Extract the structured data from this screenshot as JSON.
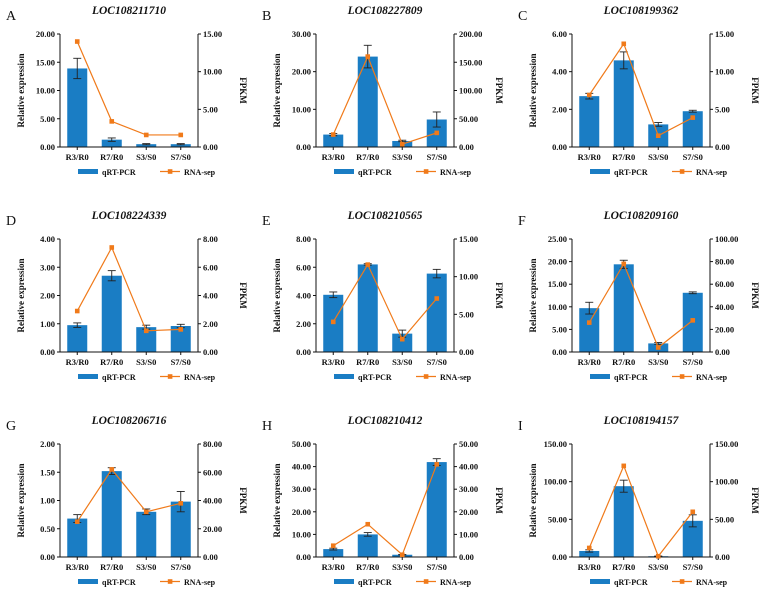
{
  "figure": {
    "colors": {
      "bar": "#1a7dc4",
      "line": "#f07a1a",
      "axis": "#111111"
    },
    "legend": {
      "bar_label": "qRT-PCR",
      "line_label": "RNA-sep"
    }
  },
  "chart_data": [
    {
      "panel": "A",
      "type": "bar",
      "title": "LOC108211710",
      "categories": [
        "R3/R0",
        "R7/R0",
        "S3/S0",
        "S7/S0"
      ],
      "ylabel": "Relative expression",
      "y2label": "FPKM",
      "ylim": [
        0,
        20
      ],
      "yticks": [
        "0.00",
        "5.00",
        "10.00",
        "15.00",
        "20.00"
      ],
      "y2lim": [
        0,
        15
      ],
      "y2ticks": [
        "0.00",
        "5.00",
        "10.00",
        "15.00"
      ],
      "series": [
        {
          "name": "qRT-PCR",
          "kind": "bar",
          "axis": "left",
          "values": [
            13.9,
            1.3,
            0.5,
            0.5
          ],
          "errors": [
            1.8,
            0.3,
            0.1,
            0.1
          ]
        },
        {
          "name": "RNA-sep",
          "kind": "line",
          "axis": "right",
          "values": [
            14.0,
            3.4,
            1.6,
            1.6
          ]
        }
      ]
    },
    {
      "panel": "B",
      "type": "bar",
      "title": "LOC108227809",
      "categories": [
        "R3/R0",
        "R7/R0",
        "S3/S0",
        "S7/S0"
      ],
      "ylabel": "Relative expression",
      "y2label": "FPKM",
      "ylim": [
        0,
        30
      ],
      "yticks": [
        "0.00",
        "10.00",
        "20.00",
        "30.00"
      ],
      "y2lim": [
        0,
        200
      ],
      "y2ticks": [
        "0.00",
        "50.00",
        "100.00",
        "150.00",
        "200.00"
      ],
      "series": [
        {
          "name": "qRT-PCR",
          "kind": "bar",
          "axis": "left",
          "values": [
            3.3,
            24.0,
            1.6,
            7.3
          ],
          "errors": [
            0.3,
            3.0,
            0.2,
            2.0
          ]
        },
        {
          "name": "RNA-sep",
          "kind": "line",
          "axis": "right",
          "values": [
            22,
            160,
            5,
            25
          ]
        }
      ]
    },
    {
      "panel": "C",
      "type": "bar",
      "title": "LOC108199362",
      "categories": [
        "R3/R0",
        "R7/R0",
        "S3/S0",
        "S7/S0"
      ],
      "ylabel": "Relative expression",
      "y2label": "FPKM",
      "ylim": [
        0,
        6
      ],
      "yticks": [
        "0.00",
        "2.00",
        "4.00",
        "6.00"
      ],
      "y2lim": [
        0,
        15
      ],
      "y2ticks": [
        "0.00",
        "5.00",
        "10.00",
        "15.00"
      ],
      "series": [
        {
          "name": "qRT-PCR",
          "kind": "bar",
          "axis": "left",
          "values": [
            2.7,
            4.6,
            1.2,
            1.9
          ],
          "errors": [
            0.15,
            0.45,
            0.1,
            0.05
          ]
        },
        {
          "name": "RNA-sep",
          "kind": "line",
          "axis": "right",
          "values": [
            6.9,
            13.7,
            1.5,
            3.9
          ]
        }
      ]
    },
    {
      "panel": "D",
      "type": "bar",
      "title": "LOC108224339",
      "categories": [
        "R3/R0",
        "R7/R0",
        "S3/S0",
        "S7/S0"
      ],
      "ylabel": "Relative expression",
      "y2label": "FPKM",
      "ylim": [
        0,
        4
      ],
      "yticks": [
        "0.00",
        "1.00",
        "2.00",
        "3.00",
        "4.00"
      ],
      "y2lim": [
        0,
        8
      ],
      "y2ticks": [
        "0.00",
        "2.00",
        "4.00",
        "6.00",
        "8.00"
      ],
      "series": [
        {
          "name": "qRT-PCR",
          "kind": "bar",
          "axis": "left",
          "values": [
            0.95,
            2.7,
            0.88,
            0.92
          ],
          "errors": [
            0.08,
            0.18,
            0.07,
            0.06
          ]
        },
        {
          "name": "RNA-sep",
          "kind": "line",
          "axis": "right",
          "values": [
            2.9,
            7.4,
            1.5,
            1.6
          ]
        }
      ]
    },
    {
      "panel": "E",
      "type": "bar",
      "title": "LOC108210565",
      "categories": [
        "R3/R0",
        "R7/R0",
        "S3/S0",
        "S7/S0"
      ],
      "ylabel": "Relative expression",
      "y2label": "FPKM",
      "ylim": [
        0,
        8
      ],
      "yticks": [
        "0.00",
        "2.00",
        "4.00",
        "6.00",
        "8.00"
      ],
      "y2lim": [
        0,
        15
      ],
      "y2ticks": [
        "0.00",
        "5.00",
        "10.00",
        "15.00"
      ],
      "series": [
        {
          "name": "qRT-PCR",
          "kind": "bar",
          "axis": "left",
          "values": [
            4.05,
            6.2,
            1.3,
            5.55
          ],
          "errors": [
            0.2,
            0.05,
            0.25,
            0.3
          ]
        },
        {
          "name": "RNA-sep",
          "kind": "line",
          "axis": "right",
          "values": [
            4.0,
            11.6,
            1.7,
            7.1
          ]
        }
      ]
    },
    {
      "panel": "F",
      "type": "bar",
      "title": "LOC108209160",
      "categories": [
        "R3/R0",
        "R7/R0",
        "S3/S0",
        "S7/S0"
      ],
      "ylabel": "Relative expression",
      "y2label": "FPKM",
      "ylim": [
        0,
        25
      ],
      "yticks": [
        "0.00",
        "5.00",
        "10.00",
        "15.00",
        "20.00",
        "25.00"
      ],
      "y2lim": [
        0,
        100
      ],
      "y2ticks": [
        "0.00",
        "20.00",
        "40.00",
        "60.00",
        "80.00",
        "100.00"
      ],
      "series": [
        {
          "name": "qRT-PCR",
          "kind": "bar",
          "axis": "left",
          "values": [
            9.7,
            19.4,
            1.9,
            13.1
          ],
          "errors": [
            1.3,
            0.9,
            0.2,
            0.2
          ]
        },
        {
          "name": "RNA-sep",
          "kind": "line",
          "axis": "right",
          "values": [
            26,
            78,
            4,
            28
          ]
        }
      ]
    },
    {
      "panel": "G",
      "type": "bar",
      "title": "LOC108206716",
      "categories": [
        "R3/R0",
        "R7/R0",
        "S3/S0",
        "S7/S0"
      ],
      "ylabel": "Relative expression",
      "y2label": "FPKM",
      "ylim": [
        0,
        2
      ],
      "yticks": [
        "0.00",
        "0.50",
        "1.00",
        "1.50",
        "2.00"
      ],
      "y2lim": [
        0,
        80
      ],
      "y2ticks": [
        "0.00",
        "20.00",
        "40.00",
        "60.00",
        "80.00"
      ],
      "series": [
        {
          "name": "qRT-PCR",
          "kind": "bar",
          "axis": "left",
          "values": [
            0.68,
            1.52,
            0.8,
            0.98
          ],
          "errors": [
            0.07,
            0.06,
            0.05,
            0.18
          ]
        },
        {
          "name": "RNA-sep",
          "kind": "line",
          "axis": "right",
          "values": [
            25,
            62,
            32,
            38
          ]
        }
      ]
    },
    {
      "panel": "H",
      "type": "bar",
      "title": "LOC108210412",
      "categories": [
        "R3/R0",
        "R7/R0",
        "S3/S0",
        "S7/S0"
      ],
      "ylabel": "Relative expression",
      "y2label": "FPKM",
      "ylim": [
        0,
        50
      ],
      "yticks": [
        "0.00",
        "10.00",
        "20.00",
        "30.00",
        "40.00",
        "50.00"
      ],
      "y2lim": [
        0,
        50
      ],
      "y2ticks": [
        "0.00",
        "10.00",
        "20.00",
        "30.00",
        "40.00",
        "50.00"
      ],
      "series": [
        {
          "name": "qRT-PCR",
          "kind": "bar",
          "axis": "left",
          "values": [
            3.5,
            10.0,
            1.0,
            42.0
          ],
          "errors": [
            0.4,
            0.8,
            0.1,
            1.5
          ]
        },
        {
          "name": "RNA-sep",
          "kind": "line",
          "axis": "right",
          "values": [
            5.0,
            14.5,
            1.0,
            41.0
          ]
        }
      ]
    },
    {
      "panel": "I",
      "type": "bar",
      "title": "LOC108194157",
      "categories": [
        "R3/R0",
        "R7/R0",
        "S3/S0",
        "S7/S0"
      ],
      "ylabel": "Relative expression",
      "y2label": "FPKM",
      "ylim": [
        0,
        150
      ],
      "yticks": [
        "0.00",
        "50.00",
        "100.00",
        "150.00"
      ],
      "y2lim": [
        0,
        150
      ],
      "y2ticks": [
        "0.00",
        "50.00",
        "100.00",
        "150.00"
      ],
      "series": [
        {
          "name": "qRT-PCR",
          "kind": "bar",
          "axis": "left",
          "values": [
            8,
            94,
            1,
            48
          ],
          "errors": [
            1.5,
            8,
            0.3,
            8
          ]
        },
        {
          "name": "RNA-sep",
          "kind": "line",
          "axis": "right",
          "values": [
            12,
            121,
            1,
            60
          ]
        }
      ]
    }
  ]
}
